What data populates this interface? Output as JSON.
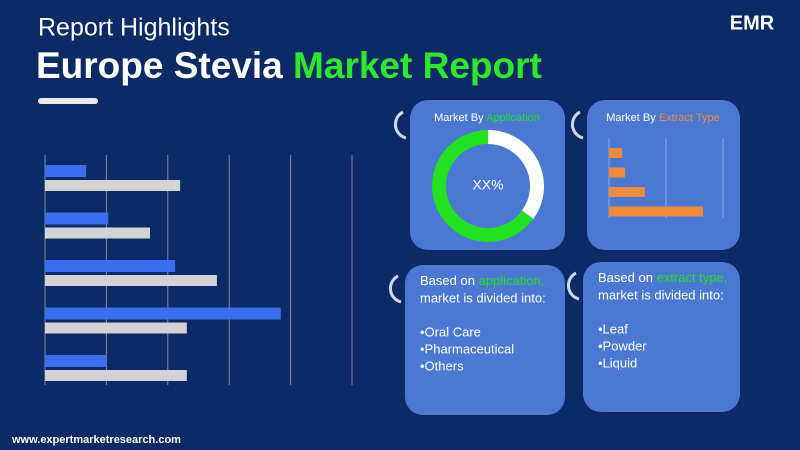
{
  "header": {
    "subtitle": "Report Highlights",
    "title": "Europe Stevia",
    "title_highlight": "Market Report"
  },
  "logo": {
    "text": "EMR"
  },
  "chart_data": [
    {
      "type": "bar",
      "orientation": "horizontal",
      "categories": [
        null,
        null,
        null,
        null,
        null
      ],
      "series": [
        {
          "color": "#3a6df0",
          "values": [
            0.67,
            1.03,
            2.12,
            3.84,
            1.0
          ]
        },
        {
          "color": "#d3d3d3",
          "values": [
            2.2,
            1.71,
            2.8,
            2.31,
            2.31
          ]
        }
      ],
      "xlim": [
        0,
        5
      ],
      "xticks": [
        0,
        1,
        2,
        3,
        4,
        5
      ],
      "grid": true
    },
    {
      "type": "pie",
      "title": "Market By",
      "title_highlight": "Application",
      "center_label": "XX%",
      "values": [
        35,
        65
      ],
      "colors": [
        "#ffffff",
        "#22e022"
      ]
    },
    {
      "type": "bar",
      "orientation": "horizontal",
      "title": "Market By",
      "title_highlight": "Extract Type",
      "categories": [
        null,
        null,
        null,
        null
      ],
      "values": [
        0.23,
        0.28,
        0.63,
        1.65
      ],
      "color": "#f08a3c",
      "xlim": [
        0,
        2
      ],
      "xticks": [
        0,
        1,
        2
      ],
      "grid": true
    }
  ],
  "panels": [
    {
      "lead_prefix": "Based on",
      "lead_highlight": "application,",
      "lead_suffix": "market is divided into:",
      "items": [
        "•Oral Care",
        "•Pharmaceutical",
        "•Others"
      ]
    },
    {
      "lead_prefix": "Based on",
      "lead_highlight": "extract type,",
      "lead_suffix": "market is divided into:",
      "items": [
        "•Leaf",
        "•Powder",
        "•Liquid"
      ]
    }
  ],
  "footer": "www.expertmarketresearch.com"
}
